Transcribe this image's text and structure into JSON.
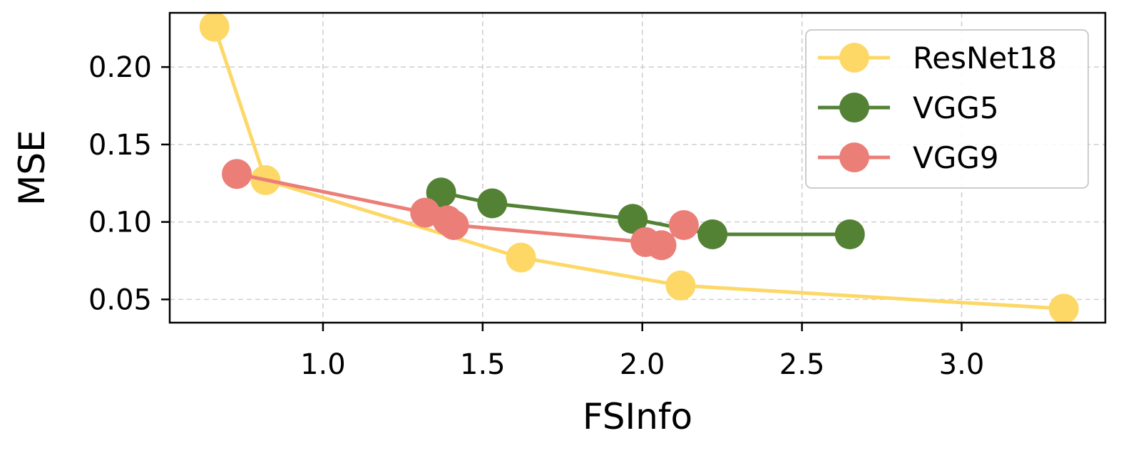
{
  "chart_data": {
    "type": "line",
    "title": "",
    "xlabel": "FSInfo",
    "ylabel": "MSE",
    "xlim": [
      0.52,
      3.45
    ],
    "ylim": [
      0.035,
      0.235
    ],
    "x_ticks": [
      1.0,
      1.5,
      2.0,
      2.5,
      3.0
    ],
    "x_tick_labels": [
      "1.0",
      "1.5",
      "2.0",
      "2.5",
      "3.0"
    ],
    "y_ticks": [
      0.05,
      0.1,
      0.15,
      0.2
    ],
    "y_tick_labels": [
      "0.05",
      "0.10",
      "0.15",
      "0.20"
    ],
    "grid": true,
    "legend_position": "top-right",
    "series": [
      {
        "name": "ResNet18",
        "color": "#FDD866",
        "points": [
          [
            0.66,
            0.226
          ],
          [
            0.82,
            0.127
          ],
          [
            1.62,
            0.077
          ],
          [
            2.12,
            0.059
          ],
          [
            3.32,
            0.044
          ]
        ]
      },
      {
        "name": "VGG5",
        "color": "#548235",
        "points": [
          [
            1.37,
            0.119
          ],
          [
            1.53,
            0.112
          ],
          [
            1.97,
            0.102
          ],
          [
            2.22,
            0.092
          ],
          [
            2.65,
            0.092
          ]
        ]
      },
      {
        "name": "VGG9",
        "color": "#EC7E78",
        "points": [
          [
            0.73,
            0.131
          ],
          [
            1.32,
            0.106
          ],
          [
            1.39,
            0.101
          ],
          [
            1.41,
            0.098
          ],
          [
            2.01,
            0.087
          ],
          [
            2.06,
            0.085
          ],
          [
            2.13,
            0.098
          ]
        ]
      }
    ]
  }
}
